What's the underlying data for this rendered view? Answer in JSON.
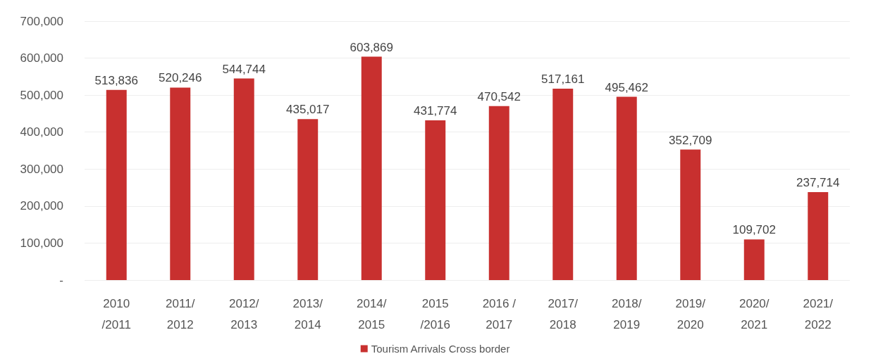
{
  "chart_data": {
    "type": "bar",
    "categories": [
      "2010\n/2011",
      "2011/\n2012",
      "2012/\n2013",
      "2013/\n2014",
      "2014/\n2015",
      "2015\n/2016",
      "2016 /\n2017",
      "2017/\n2018",
      "2018/\n2019",
      "2019/\n2020",
      "2020/\n2021",
      "2021/\n2022"
    ],
    "series": [
      {
        "name": "Tourism Arrivals Cross border",
        "color": "#c8302f",
        "values": [
          513836,
          520246,
          544744,
          435017,
          603869,
          431774,
          470542,
          517161,
          495462,
          352709,
          109702,
          237714
        ],
        "value_labels": [
          "513,836",
          "520,246",
          "544,744",
          "435,017",
          "603,869",
          "431,774",
          "470,542",
          "517,161",
          "495,462",
          "352,709",
          "109,702",
          "237,714"
        ]
      }
    ],
    "ylim": [
      0,
      700000
    ],
    "yticks": [
      {
        "value": 0,
        "label": "-"
      },
      {
        "value": 100000,
        "label": "100,000"
      },
      {
        "value": 200000,
        "label": "200,000"
      },
      {
        "value": 300000,
        "label": "300,000"
      },
      {
        "value": 400000,
        "label": "400,000"
      },
      {
        "value": 500000,
        "label": "500,000"
      },
      {
        "value": 600000,
        "label": "600,000"
      },
      {
        "value": 700000,
        "label": "700,000"
      }
    ],
    "grid": "y",
    "legend": "bottom"
  }
}
